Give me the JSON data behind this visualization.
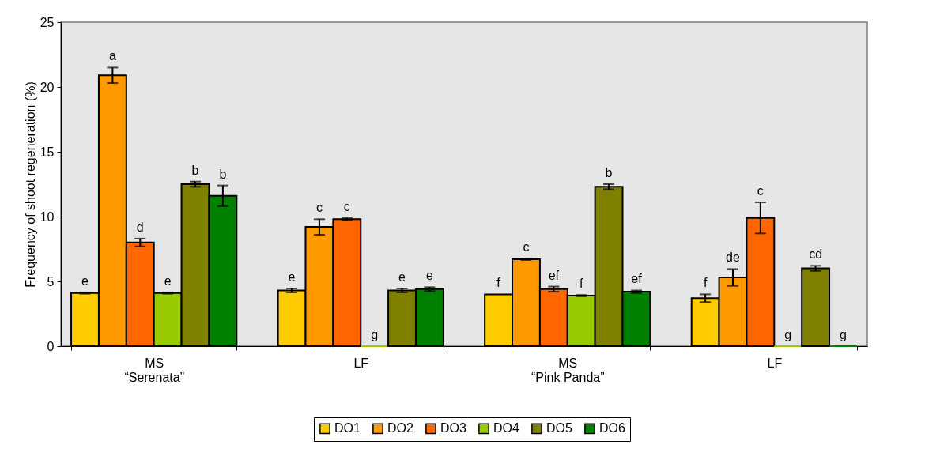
{
  "chart_data": {
    "type": "bar",
    "ylabel": "Frequency of shoot regeneration (%)",
    "categories": [
      "MS\n“Serenata”",
      "LF",
      "MS\n“Pink Panda”",
      "LF"
    ],
    "series": [
      {
        "name": "DO1",
        "color": "#ffcc00",
        "values": [
          4.1,
          4.3,
          4.0,
          3.7
        ],
        "errors": [
          0.05,
          0.15,
          null,
          0.3
        ],
        "value_labels": [
          "e",
          "e",
          "f",
          "f"
        ]
      },
      {
        "name": "DO2",
        "color": "#ff9900",
        "values": [
          20.9,
          9.2,
          6.7,
          5.3
        ],
        "errors": [
          0.6,
          0.6,
          0.05,
          0.65
        ],
        "value_labels": [
          "a",
          "c",
          "c",
          "de"
        ]
      },
      {
        "name": "DO3",
        "color": "#ff6600",
        "values": [
          8.0,
          9.8,
          4.4,
          9.9
        ],
        "errors": [
          0.3,
          0.1,
          0.2,
          1.2
        ],
        "value_labels": [
          "d",
          "c",
          "ef",
          "c"
        ]
      },
      {
        "name": "DO4",
        "color": "#99cc00",
        "values": [
          4.1,
          0,
          3.9,
          0
        ],
        "errors": [
          0.05,
          null,
          0.05,
          null
        ],
        "value_labels": [
          "e",
          "g",
          "f",
          "g"
        ]
      },
      {
        "name": "DO5",
        "color": "#808000",
        "values": [
          12.5,
          4.3,
          12.3,
          6.0
        ],
        "errors": [
          0.2,
          0.15,
          0.2,
          0.2
        ],
        "value_labels": [
          "b",
          "e",
          "b",
          "cd"
        ]
      },
      {
        "name": "DO6",
        "color": "#008000",
        "values": [
          11.6,
          4.4,
          4.2,
          0
        ],
        "errors": [
          0.8,
          0.15,
          0.1,
          null
        ],
        "value_labels": [
          "b",
          "e",
          "ef",
          "g"
        ]
      }
    ],
    "ylim": [
      0,
      25
    ],
    "yticks": [
      0,
      5,
      10,
      15,
      20,
      25
    ],
    "grid": false,
    "legend": "bottom"
  }
}
